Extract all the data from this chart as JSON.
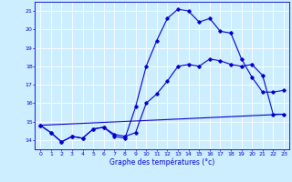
{
  "bg_color": "#cceeff",
  "line_color": "#0000cc",
  "grid_color": "#ffffff",
  "xlim": [
    -0.5,
    23.5
  ],
  "ylim": [
    13.5,
    21.5
  ],
  "yticks": [
    14,
    15,
    16,
    17,
    18,
    19,
    20,
    21
  ],
  "xticks": [
    0,
    1,
    2,
    3,
    4,
    5,
    6,
    7,
    8,
    9,
    10,
    11,
    12,
    13,
    14,
    15,
    16,
    17,
    18,
    19,
    20,
    21,
    22,
    23
  ],
  "line1_x": [
    0,
    1,
    2,
    3,
    4,
    5,
    6,
    7,
    8,
    9,
    10,
    11,
    12,
    13,
    14,
    15,
    16,
    17,
    18,
    19,
    20,
    21,
    22,
    23
  ],
  "line1_y": [
    14.8,
    14.4,
    13.9,
    14.2,
    14.1,
    14.6,
    14.7,
    14.3,
    14.2,
    14.4,
    16.0,
    16.5,
    17.2,
    18.0,
    18.1,
    18.0,
    18.4,
    18.3,
    18.1,
    18.0,
    18.1,
    17.5,
    15.4,
    15.4
  ],
  "line2_x": [
    0,
    1,
    2,
    3,
    4,
    5,
    6,
    7,
    8,
    9,
    10,
    11,
    12,
    13,
    14,
    15,
    16,
    17,
    18,
    19,
    20,
    21,
    22,
    23
  ],
  "line2_y": [
    14.8,
    14.4,
    13.9,
    14.2,
    14.1,
    14.6,
    14.7,
    14.2,
    14.1,
    15.8,
    18.0,
    19.4,
    20.6,
    21.1,
    21.0,
    20.4,
    20.6,
    19.9,
    19.8,
    18.4,
    17.4,
    16.6,
    16.6,
    16.7
  ],
  "line3_x": [
    0,
    23
  ],
  "line3_y": [
    14.8,
    15.4
  ],
  "marker": "D",
  "markersize": 1.8,
  "linewidth": 0.8,
  "xlabel": "Graphe des températures (°c)"
}
